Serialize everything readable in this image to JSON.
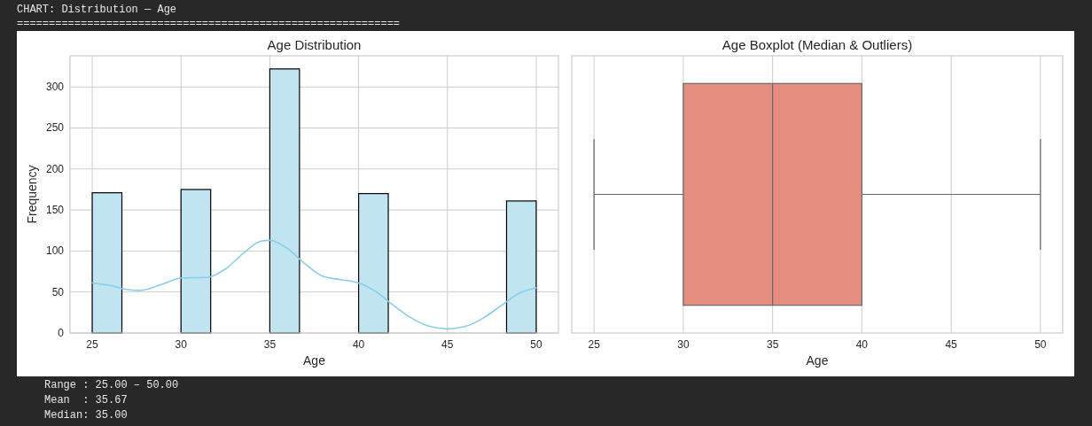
{
  "chart_data": [
    {
      "type": "other",
      "title": "CHART: Distribution — Age",
      "annotations": [
        "============================================================",
        "Range : 25.00 – 50.00",
        "Mean  : 35.67",
        "Median: 35.00"
      ]
    },
    {
      "type": "histogram",
      "title": "Age Distribution",
      "xlabel": "Age",
      "ylabel": "Frequency",
      "bins": [
        25,
        26.67,
        28.33,
        30,
        31.67,
        33.33,
        35,
        36.67,
        38.33,
        40,
        41.67,
        43.33,
        45,
        46.67,
        48.33,
        50
      ],
      "values": [
        171,
        0,
        0,
        175,
        0,
        0,
        322,
        0,
        0,
        170,
        0,
        0,
        0,
        0,
        161
      ],
      "color": "#c0e4f0",
      "series": [
        {
          "type": "line",
          "color": "#87ceeb",
          "x": [
            25,
            26,
            27,
            27.7,
            29,
            30,
            31.5,
            32.5,
            33.5,
            34.5,
            35,
            36,
            37,
            38,
            39,
            40,
            41,
            42,
            43,
            44,
            45,
            46,
            47,
            48,
            49,
            50
          ],
          "values": [
            61,
            58,
            53,
            52,
            60,
            67,
            68,
            78,
            97,
            112,
            113,
            103,
            84,
            69,
            65,
            61,
            50,
            33,
            18,
            8,
            5,
            8,
            18,
            33,
            48,
            55
          ]
        }
      ],
      "xlim": [
        23.75,
        51.25
      ],
      "ylim": [
        0,
        338
      ],
      "xticks": [
        25,
        30,
        35,
        40,
        45,
        50
      ],
      "yticks": [
        0,
        50,
        100,
        150,
        200,
        250,
        300
      ],
      "grid": true
    },
    {
      "type": "box",
      "title": "Age Boxplot (Median & Outliers)",
      "xlabel": "Age",
      "orientation": "horizontal",
      "categories": [
        null
      ],
      "boxes": [
        {
          "low": 25,
          "q1": 30,
          "median": 35,
          "q3": 40,
          "high": 50
        }
      ],
      "color": "#e58e80",
      "xlim": [
        23.75,
        51.25
      ],
      "xticks": [
        25,
        30,
        35,
        40,
        45,
        50
      ],
      "grid": "x",
      "tick_labels": "x"
    }
  ]
}
